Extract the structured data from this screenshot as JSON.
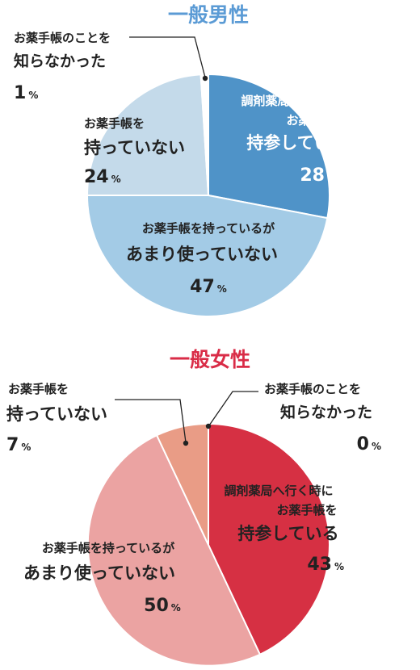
{
  "chart_data": [
    {
      "type": "pie",
      "title": "一般男性",
      "title_color": "#5b9bd5",
      "slices": [
        {
          "label_lines": [
            "調剤薬局へ行く時に",
            "お薬手帳を",
            "持参している"
          ],
          "value": 28,
          "pct_text": "28",
          "color": "#4f93c8"
        },
        {
          "label_lines": [
            "お薬手帳を持っているが",
            "あまり使っていない"
          ],
          "value": 47,
          "pct_text": "47",
          "color": "#a3cbe6"
        },
        {
          "label_lines": [
            "お薬手帳を",
            "持っていない"
          ],
          "value": 24,
          "pct_text": "24",
          "color": "#c4daea"
        },
        {
          "label_lines": [
            "お薬手帳のことを",
            "知らなかった"
          ],
          "value": 1,
          "pct_text": "1",
          "color": "#ffffff"
        }
      ],
      "unit": "%"
    },
    {
      "type": "pie",
      "title": "一般女性",
      "title_color": "#d92c47",
      "slices": [
        {
          "label_lines": [
            "調剤薬局へ行く時に",
            "お薬手帳を",
            "持参している"
          ],
          "value": 43,
          "pct_text": "43",
          "color": "#d63043"
        },
        {
          "label_lines": [
            "お薬手帳を持っているが",
            "あまり使っていない"
          ],
          "value": 50,
          "pct_text": "50",
          "color": "#eba3a2"
        },
        {
          "label_lines": [
            "お薬手帳を",
            "持っていない"
          ],
          "value": 7,
          "pct_text": "7",
          "color": "#e99c86"
        },
        {
          "label_lines": [
            "お薬手帳のことを",
            "知らなかった"
          ],
          "value": 0,
          "pct_text": "0",
          "color": "#ffffff"
        }
      ],
      "unit": "%"
    }
  ]
}
